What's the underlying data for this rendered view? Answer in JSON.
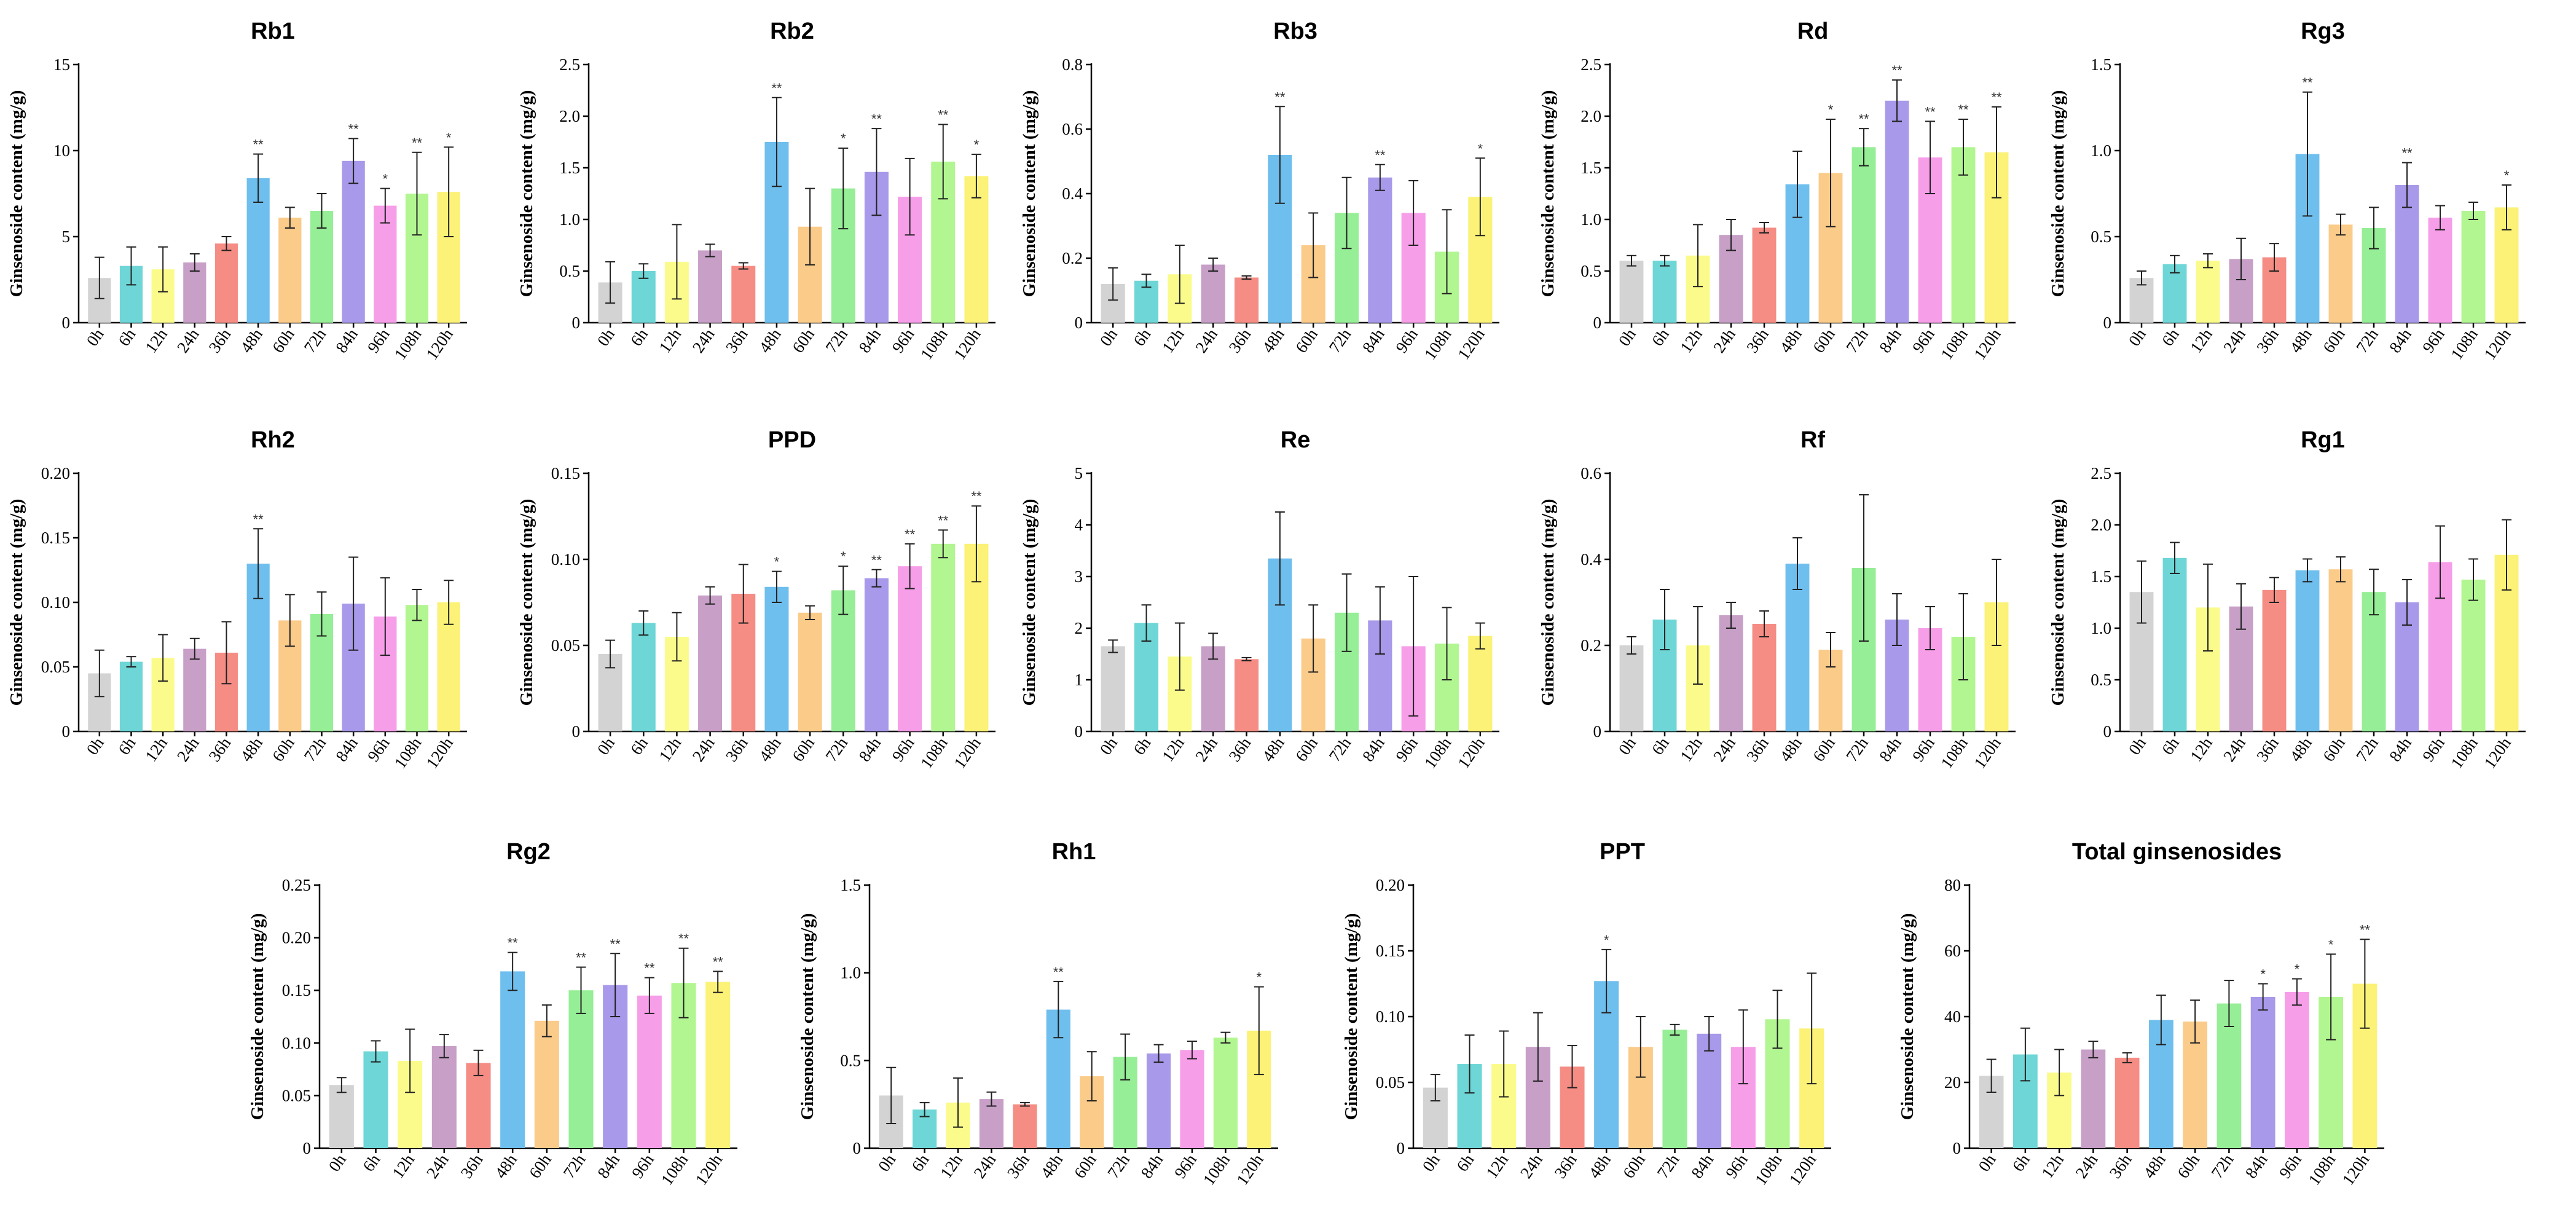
{
  "palette": [
    "#d3d3d3",
    "#6ed6d6",
    "#fbfb8c",
    "#c79fc7",
    "#f58d85",
    "#6fbfee",
    "#fbcb8a",
    "#96ee96",
    "#a899ea",
    "#f79ee9",
    "#b2f691",
    "#fbf277"
  ],
  "chart_data": [
    {
      "type": "bar",
      "title": "Rb1",
      "ylabel": "Ginsenoside content (mg/g)",
      "ylim": [
        0,
        15
      ],
      "yticks": [
        0,
        5,
        10,
        15
      ],
      "categories": [
        "0h",
        "6h",
        "12h",
        "24h",
        "36h",
        "48h",
        "60h",
        "72h",
        "84h",
        "96h",
        "108h",
        "120h"
      ],
      "values": [
        2.6,
        3.3,
        3.1,
        3.5,
        4.6,
        8.4,
        6.1,
        6.5,
        9.4,
        6.8,
        7.5,
        7.6
      ],
      "errors": [
        1.2,
        1.1,
        1.3,
        0.5,
        0.4,
        1.4,
        0.6,
        1.0,
        1.3,
        1.0,
        2.4,
        2.6
      ],
      "significance": [
        "",
        "",
        "",
        "",
        "",
        "**",
        "",
        "",
        "**",
        "*",
        "**",
        "*"
      ]
    },
    {
      "type": "bar",
      "title": "Rb2",
      "ylabel": "Ginsenoside content (mg/g)",
      "ylim": [
        0,
        2.5
      ],
      "yticks": [
        0,
        0.5,
        1.0,
        1.5,
        2.0,
        2.5
      ],
      "categories": [
        "0h",
        "6h",
        "12h",
        "24h",
        "36h",
        "48h",
        "60h",
        "72h",
        "84h",
        "96h",
        "108h",
        "120h"
      ],
      "values": [
        0.39,
        0.5,
        0.59,
        0.7,
        0.55,
        1.75,
        0.93,
        1.3,
        1.46,
        1.22,
        1.56,
        1.42
      ],
      "errors": [
        0.2,
        0.07,
        0.36,
        0.06,
        0.03,
        0.43,
        0.37,
        0.39,
        0.42,
        0.37,
        0.36,
        0.21
      ],
      "significance": [
        "",
        "",
        "",
        "",
        "",
        "**",
        "",
        "*",
        "**",
        "",
        "**",
        "*"
      ]
    },
    {
      "type": "bar",
      "title": "Rb3",
      "ylabel": "Ginsenoside content (mg/g)",
      "ylim": [
        0,
        0.8
      ],
      "yticks": [
        0,
        0.2,
        0.4,
        0.6,
        0.8
      ],
      "categories": [
        "0h",
        "6h",
        "12h",
        "24h",
        "36h",
        "48h",
        "60h",
        "72h",
        "84h",
        "96h",
        "108h",
        "120h"
      ],
      "values": [
        0.12,
        0.13,
        0.15,
        0.18,
        0.14,
        0.52,
        0.24,
        0.34,
        0.45,
        0.34,
        0.22,
        0.39
      ],
      "errors": [
        0.05,
        0.02,
        0.09,
        0.02,
        0.005,
        0.15,
        0.1,
        0.11,
        0.04,
        0.1,
        0.13,
        0.12
      ],
      "significance": [
        "",
        "",
        "",
        "",
        "",
        "**",
        "",
        "",
        "**",
        "",
        "",
        "*"
      ]
    },
    {
      "type": "bar",
      "title": "Rd",
      "ylabel": "Ginsenoside content (mg/g)",
      "ylim": [
        0,
        2.5
      ],
      "yticks": [
        0,
        0.5,
        1.0,
        1.5,
        2.0,
        2.5
      ],
      "categories": [
        "0h",
        "6h",
        "12h",
        "24h",
        "36h",
        "48h",
        "60h",
        "72h",
        "84h",
        "96h",
        "108h",
        "120h"
      ],
      "values": [
        0.6,
        0.6,
        0.65,
        0.85,
        0.92,
        1.34,
        1.45,
        1.7,
        2.15,
        1.6,
        1.7,
        1.65
      ],
      "errors": [
        0.05,
        0.05,
        0.3,
        0.15,
        0.05,
        0.32,
        0.52,
        0.18,
        0.2,
        0.35,
        0.27,
        0.44
      ],
      "significance": [
        "",
        "",
        "",
        "",
        "",
        "",
        "*",
        "**",
        "**",
        "**",
        "**",
        "**"
      ]
    },
    {
      "type": "bar",
      "title": "Rg3",
      "ylabel": "Ginsenoside content (mg/g)",
      "ylim": [
        0,
        1.5
      ],
      "yticks": [
        0,
        0.5,
        1.0,
        1.5
      ],
      "categories": [
        "0h",
        "6h",
        "12h",
        "24h",
        "36h",
        "48h",
        "60h",
        "72h",
        "84h",
        "96h",
        "108h",
        "120h"
      ],
      "values": [
        0.26,
        0.34,
        0.36,
        0.37,
        0.38,
        0.98,
        0.57,
        0.55,
        0.8,
        0.61,
        0.65,
        0.67
      ],
      "errors": [
        0.04,
        0.05,
        0.04,
        0.12,
        0.08,
        0.36,
        0.06,
        0.12,
        0.13,
        0.07,
        0.05,
        0.13
      ],
      "significance": [
        "",
        "",
        "",
        "",
        "",
        "**",
        "",
        "",
        "**",
        "",
        "",
        "*"
      ]
    },
    {
      "type": "bar",
      "title": "Rh2",
      "ylabel": "Ginsenoside content (mg/g)",
      "ylim": [
        0,
        0.2
      ],
      "yticks": [
        0,
        0.05,
        0.1,
        0.15,
        0.2
      ],
      "categories": [
        "0h",
        "6h",
        "12h",
        "24h",
        "36h",
        "48h",
        "60h",
        "72h",
        "84h",
        "96h",
        "108h",
        "120h"
      ],
      "values": [
        0.045,
        0.054,
        0.057,
        0.064,
        0.061,
        0.13,
        0.086,
        0.091,
        0.099,
        0.089,
        0.098,
        0.1
      ],
      "errors": [
        0.018,
        0.004,
        0.018,
        0.008,
        0.024,
        0.027,
        0.02,
        0.017,
        0.036,
        0.03,
        0.012,
        0.017
      ],
      "significance": [
        "",
        "",
        "",
        "",
        "",
        "**",
        "",
        "",
        "",
        "",
        "",
        ""
      ]
    },
    {
      "type": "bar",
      "title": "PPD",
      "ylabel": "Ginsenoside content (mg/g)",
      "ylim": [
        0,
        0.15
      ],
      "yticks": [
        0,
        0.05,
        0.1,
        0.15
      ],
      "categories": [
        "0h",
        "6h",
        "12h",
        "24h",
        "36h",
        "48h",
        "60h",
        "72h",
        "84h",
        "96h",
        "108h",
        "120h"
      ],
      "values": [
        0.045,
        0.063,
        0.055,
        0.079,
        0.08,
        0.084,
        0.069,
        0.082,
        0.089,
        0.096,
        0.109,
        0.109
      ],
      "errors": [
        0.008,
        0.007,
        0.014,
        0.005,
        0.017,
        0.009,
        0.004,
        0.014,
        0.005,
        0.013,
        0.008,
        0.022
      ],
      "significance": [
        "",
        "",
        "",
        "",
        "",
        "*",
        "",
        "*",
        "**",
        "**",
        "**",
        "**"
      ]
    },
    {
      "type": "bar",
      "title": "Re",
      "ylabel": "Ginsenoside content (mg/g)",
      "ylim": [
        0,
        5
      ],
      "yticks": [
        0,
        1,
        2,
        3,
        4,
        5
      ],
      "categories": [
        "0h",
        "6h",
        "12h",
        "24h",
        "36h",
        "48h",
        "60h",
        "72h",
        "84h",
        "96h",
        "108h",
        "120h"
      ],
      "values": [
        1.65,
        2.1,
        1.45,
        1.65,
        1.4,
        3.35,
        1.8,
        2.3,
        2.15,
        1.65,
        1.7,
        1.85
      ],
      "errors": [
        0.12,
        0.35,
        0.65,
        0.25,
        0.03,
        0.9,
        0.65,
        0.75,
        0.65,
        1.35,
        0.7,
        0.25
      ],
      "significance": [
        "",
        "",
        "",
        "",
        "",
        "",
        "",
        "",
        "",
        "",
        "",
        ""
      ]
    },
    {
      "type": "bar",
      "title": "Rf",
      "ylabel": "Ginsenoside content (mg/g)",
      "ylim": [
        0,
        0.6
      ],
      "yticks": [
        0,
        0.2,
        0.4,
        0.6
      ],
      "categories": [
        "0h",
        "6h",
        "12h",
        "24h",
        "36h",
        "48h",
        "60h",
        "72h",
        "84h",
        "96h",
        "108h",
        "120h"
      ],
      "values": [
        0.2,
        0.26,
        0.2,
        0.27,
        0.25,
        0.39,
        0.19,
        0.38,
        0.26,
        0.24,
        0.22,
        0.3
      ],
      "errors": [
        0.02,
        0.07,
        0.09,
        0.03,
        0.03,
        0.06,
        0.04,
        0.17,
        0.06,
        0.05,
        0.1,
        0.1
      ],
      "significance": [
        "",
        "",
        "",
        "",
        "",
        "",
        "",
        "",
        "",
        "",
        "",
        ""
      ]
    },
    {
      "type": "bar",
      "title": "Rg1",
      "ylabel": "Ginsenoside content (mg/g)",
      "ylim": [
        0,
        2.5
      ],
      "yticks": [
        0,
        0.5,
        1.0,
        1.5,
        2.0,
        2.5
      ],
      "categories": [
        "0h",
        "6h",
        "12h",
        "24h",
        "36h",
        "48h",
        "60h",
        "72h",
        "84h",
        "96h",
        "108h",
        "120h"
      ],
      "values": [
        1.35,
        1.68,
        1.2,
        1.21,
        1.37,
        1.56,
        1.57,
        1.35,
        1.25,
        1.64,
        1.47,
        1.71
      ],
      "errors": [
        0.3,
        0.15,
        0.42,
        0.22,
        0.12,
        0.11,
        0.12,
        0.22,
        0.22,
        0.35,
        0.2,
        0.34
      ],
      "significance": [
        "",
        "",
        "",
        "",
        "",
        "",
        "",
        "",
        "",
        "",
        "",
        ""
      ]
    },
    {
      "type": "bar",
      "title": "Rg2",
      "ylabel": "Ginsenoside content (mg/g)",
      "ylim": [
        0,
        0.25
      ],
      "yticks": [
        0,
        0.05,
        0.1,
        0.15,
        0.2,
        0.25
      ],
      "categories": [
        "0h",
        "6h",
        "12h",
        "24h",
        "36h",
        "48h",
        "60h",
        "72h",
        "84h",
        "96h",
        "108h",
        "120h"
      ],
      "values": [
        0.06,
        0.092,
        0.083,
        0.097,
        0.081,
        0.168,
        0.121,
        0.15,
        0.155,
        0.145,
        0.157,
        0.158
      ],
      "errors": [
        0.007,
        0.01,
        0.03,
        0.011,
        0.012,
        0.018,
        0.015,
        0.022,
        0.03,
        0.017,
        0.033,
        0.01
      ],
      "significance": [
        "",
        "",
        "",
        "",
        "",
        "**",
        "",
        "**",
        "**",
        "**",
        "**",
        "**"
      ]
    },
    {
      "type": "bar",
      "title": "Rh1",
      "ylabel": "Ginsenoside content (mg/g)",
      "ylim": [
        0,
        1.5
      ],
      "yticks": [
        0,
        0.5,
        1.0,
        1.5
      ],
      "categories": [
        "0h",
        "6h",
        "12h",
        "24h",
        "36h",
        "48h",
        "60h",
        "72h",
        "84h",
        "96h",
        "108h",
        "120h"
      ],
      "values": [
        0.3,
        0.22,
        0.26,
        0.28,
        0.25,
        0.79,
        0.41,
        0.52,
        0.54,
        0.56,
        0.63,
        0.67
      ],
      "errors": [
        0.16,
        0.04,
        0.14,
        0.04,
        0.01,
        0.16,
        0.14,
        0.13,
        0.05,
        0.05,
        0.03,
        0.25
      ],
      "significance": [
        "",
        "",
        "",
        "",
        "",
        "**",
        "",
        "",
        "",
        "",
        "",
        "*"
      ]
    },
    {
      "type": "bar",
      "title": "PPT",
      "ylabel": "Ginsenoside content (mg/g)",
      "ylim": [
        0,
        0.2
      ],
      "yticks": [
        0,
        0.05,
        0.1,
        0.15,
        0.2
      ],
      "categories": [
        "0h",
        "6h",
        "12h",
        "24h",
        "36h",
        "48h",
        "60h",
        "72h",
        "84h",
        "96h",
        "108h",
        "120h"
      ],
      "values": [
        0.046,
        0.064,
        0.064,
        0.077,
        0.062,
        0.127,
        0.077,
        0.09,
        0.087,
        0.077,
        0.098,
        0.091
      ],
      "errors": [
        0.01,
        0.022,
        0.025,
        0.026,
        0.016,
        0.024,
        0.023,
        0.004,
        0.013,
        0.028,
        0.022,
        0.042
      ],
      "significance": [
        "",
        "",
        "",
        "",
        "",
        "*",
        "",
        "",
        "",
        "",
        "",
        ""
      ]
    },
    {
      "type": "bar",
      "title": "Total ginsenosides",
      "ylabel": "Ginsenoside content (mg/g)",
      "ylim": [
        0,
        80
      ],
      "yticks": [
        0,
        20,
        40,
        60,
        80
      ],
      "categories": [
        "0h",
        "6h",
        "12h",
        "24h",
        "36h",
        "48h",
        "60h",
        "72h",
        "84h",
        "96h",
        "108h",
        "120h"
      ],
      "values": [
        22,
        28.5,
        23,
        30,
        27.5,
        39,
        38.5,
        44,
        46,
        47.5,
        46,
        50
      ],
      "errors": [
        5,
        8,
        7,
        2.5,
        1.5,
        7.5,
        6.5,
        7,
        4,
        4,
        13,
        13.5
      ],
      "significance": [
        "",
        "",
        "",
        "",
        "",
        "",
        "",
        "",
        "*",
        "*",
        "*",
        "**"
      ]
    }
  ]
}
